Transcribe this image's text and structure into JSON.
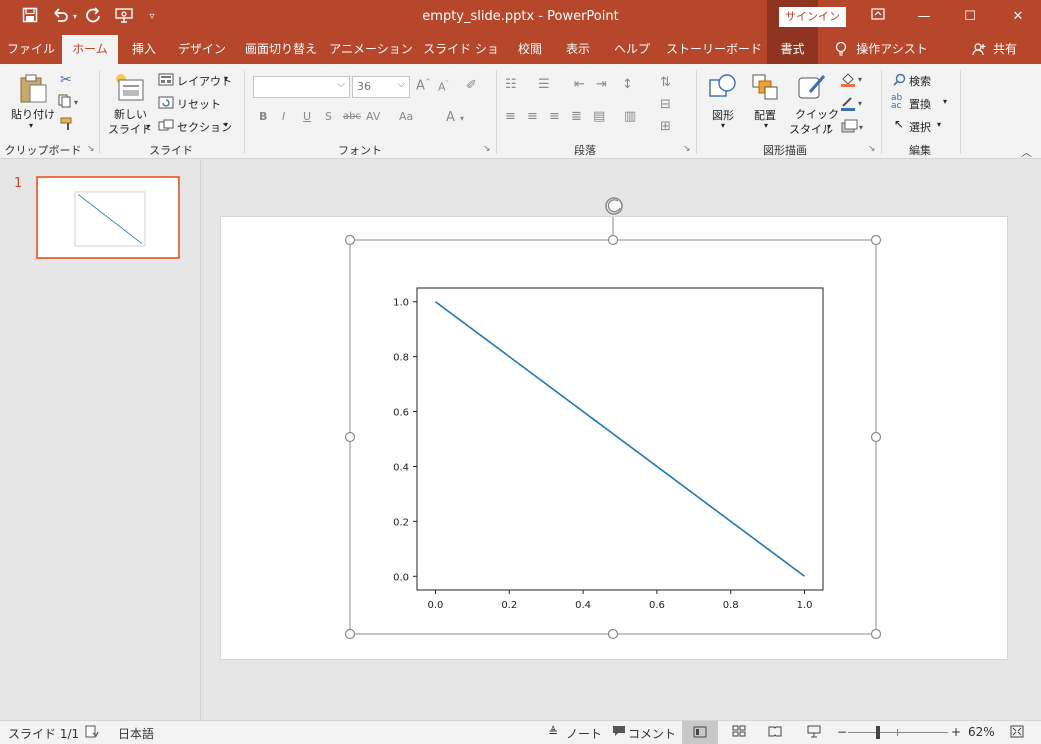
{
  "window": {
    "title": "empty_slide.pptx - PowerPoint",
    "signin_label": "サインイン",
    "icons": [
      "save-icon",
      "undo-icon",
      "redo-icon",
      "present-icon",
      "customize-icon",
      "ribbon-display-icon",
      "minimize-icon",
      "maximize-icon",
      "close-icon"
    ]
  },
  "tabs": [
    {
      "label": "ファイル"
    },
    {
      "label": "ホーム"
    },
    {
      "label": "挿入"
    },
    {
      "label": "デザイン"
    },
    {
      "label": "画面切り替え"
    },
    {
      "label": "アニメーション"
    },
    {
      "label": "スライド ショー"
    },
    {
      "label": "校閲"
    },
    {
      "label": "表示"
    },
    {
      "label": "ヘルプ"
    },
    {
      "label": "ストーリーボード"
    },
    {
      "label": "書式"
    },
    {
      "label": "操作アシスト"
    },
    {
      "label": "共有"
    }
  ],
  "ribbon": {
    "paste": "貼り付け",
    "clipboard": "クリップボード",
    "new_slide_1": "新しい",
    "new_slide_2": "スライド",
    "layout": "レイアウト",
    "reset": "リセット",
    "section": "セクション",
    "slides": "スライド",
    "font_size": "36",
    "font": "フォント",
    "paragraph": "段落",
    "shape": "図形",
    "arrange": "配置",
    "quick_style_1": "クイック",
    "quick_style_2": "スタイル",
    "drawing": "図形描画",
    "find": "検索",
    "replace": "置換",
    "select": "選択",
    "editing": "編集",
    "font_buttons": [
      "B",
      "I",
      "U",
      "S",
      "abc",
      "AV",
      "Aa",
      "A"
    ]
  },
  "thumbnail": {
    "number": "1"
  },
  "status": {
    "slide": "スライド 1/1",
    "language": "日本語",
    "notes": "ノート",
    "comments": "コメント",
    "zoom": "62%",
    "zoom_fraction": 0.62
  },
  "colors": {
    "brand": "#b7472a",
    "accent": "#ec7048",
    "line": "#1f77b4"
  },
  "chart_data": {
    "type": "line",
    "x": [
      0.0,
      1.0
    ],
    "series": [
      {
        "values": [
          1.0,
          0.0
        ]
      }
    ],
    "xlim": [
      -0.05,
      1.05
    ],
    "ylim": [
      -0.05,
      1.05
    ],
    "xticks": [
      "0.0",
      "0.2",
      "0.4",
      "0.6",
      "0.8",
      "1.0"
    ],
    "yticks": [
      "0.0",
      "0.2",
      "0.4",
      "0.6",
      "0.8",
      "1.0"
    ],
    "title": "",
    "xlabel": "",
    "ylabel": "",
    "grid": false
  }
}
